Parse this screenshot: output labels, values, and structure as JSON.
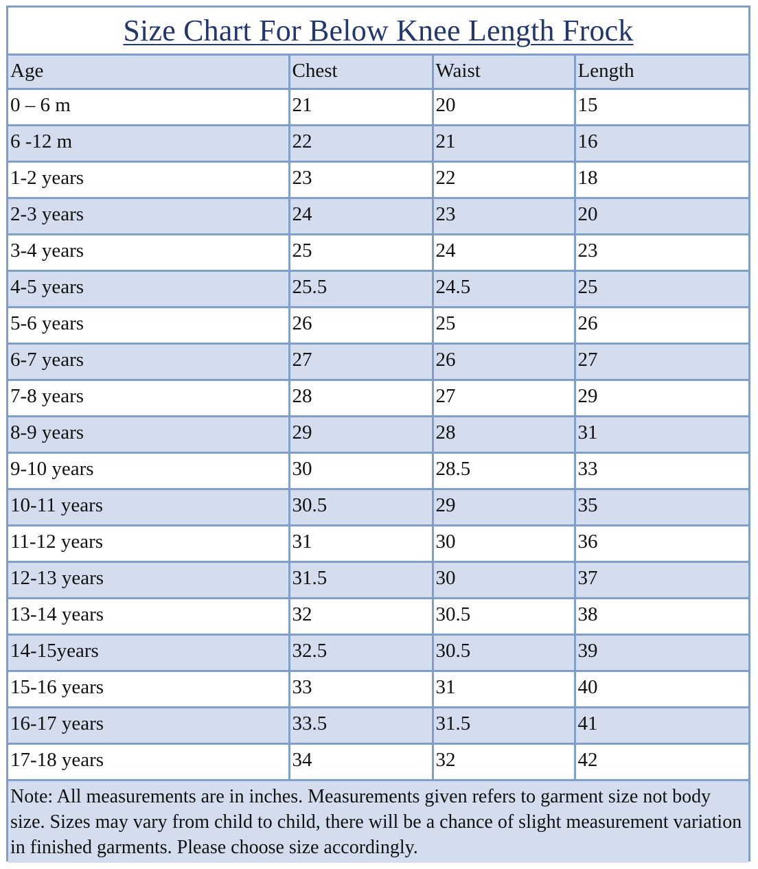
{
  "title": "Size Chart For Below Knee Length Frock",
  "columns": [
    "Age",
    "Chest",
    "Waist",
    "Length"
  ],
  "rows": [
    {
      "age": "0 – 6 m",
      "chest": "21",
      "waist": "20",
      "length": "15"
    },
    {
      "age": "6 -12 m",
      "chest": "22",
      "waist": "21",
      "length": "16"
    },
    {
      "age": "1-2 years",
      "chest": "23",
      "waist": "22",
      "length": "18"
    },
    {
      "age": "2-3 years",
      "chest": "24",
      "waist": "23",
      "length": "20"
    },
    {
      "age": "3-4 years",
      "chest": "25",
      "waist": "24",
      "length": "23"
    },
    {
      "age": "4-5 years",
      "chest": "25.5",
      "waist": "24.5",
      "length": "25"
    },
    {
      "age": "5-6 years",
      "chest": "26",
      "waist": "25",
      "length": "26"
    },
    {
      "age": "6-7 years",
      "chest": "27",
      "waist": "26",
      "length": "27"
    },
    {
      "age": "7-8 years",
      "chest": "28",
      "waist": "27",
      "length": "29"
    },
    {
      "age": "8-9 years",
      "chest": "29",
      "waist": "28",
      "length": "31"
    },
    {
      "age": "9-10 years",
      "chest": "30",
      "waist": "28.5",
      "length": "33"
    },
    {
      "age": "10-11 years",
      "chest": "30.5",
      "waist": "29",
      "length": "35"
    },
    {
      "age": "11-12 years",
      "chest": "31",
      "waist": "30",
      "length": "36"
    },
    {
      "age": "12-13 years",
      "chest": "31.5",
      "waist": "30",
      "length": "37"
    },
    {
      "age": "13-14 years",
      "chest": "32",
      "waist": "30.5",
      "length": "38"
    },
    {
      "age": "14-15years",
      "chest": "32.5",
      "waist": "30.5",
      "length": "39"
    },
    {
      "age": "15-16 years",
      "chest": "33",
      "waist": "31",
      "length": "40"
    },
    {
      "age": "16-17 years",
      "chest": "33.5",
      "waist": "31.5",
      "length": "41"
    },
    {
      "age": "17-18 years",
      "chest": "34",
      "waist": "32",
      "length": "42"
    }
  ],
  "note": "Note: All measurements are in inches. Measurements given refers to garment size not body size. Sizes may vary from child to child, there will be a chance of slight measurement variation in finished garments. Please choose size accordingly.",
  "colors": {
    "border": "#7f9fcb",
    "shade": "#d3ddee",
    "title": "#23376f"
  }
}
